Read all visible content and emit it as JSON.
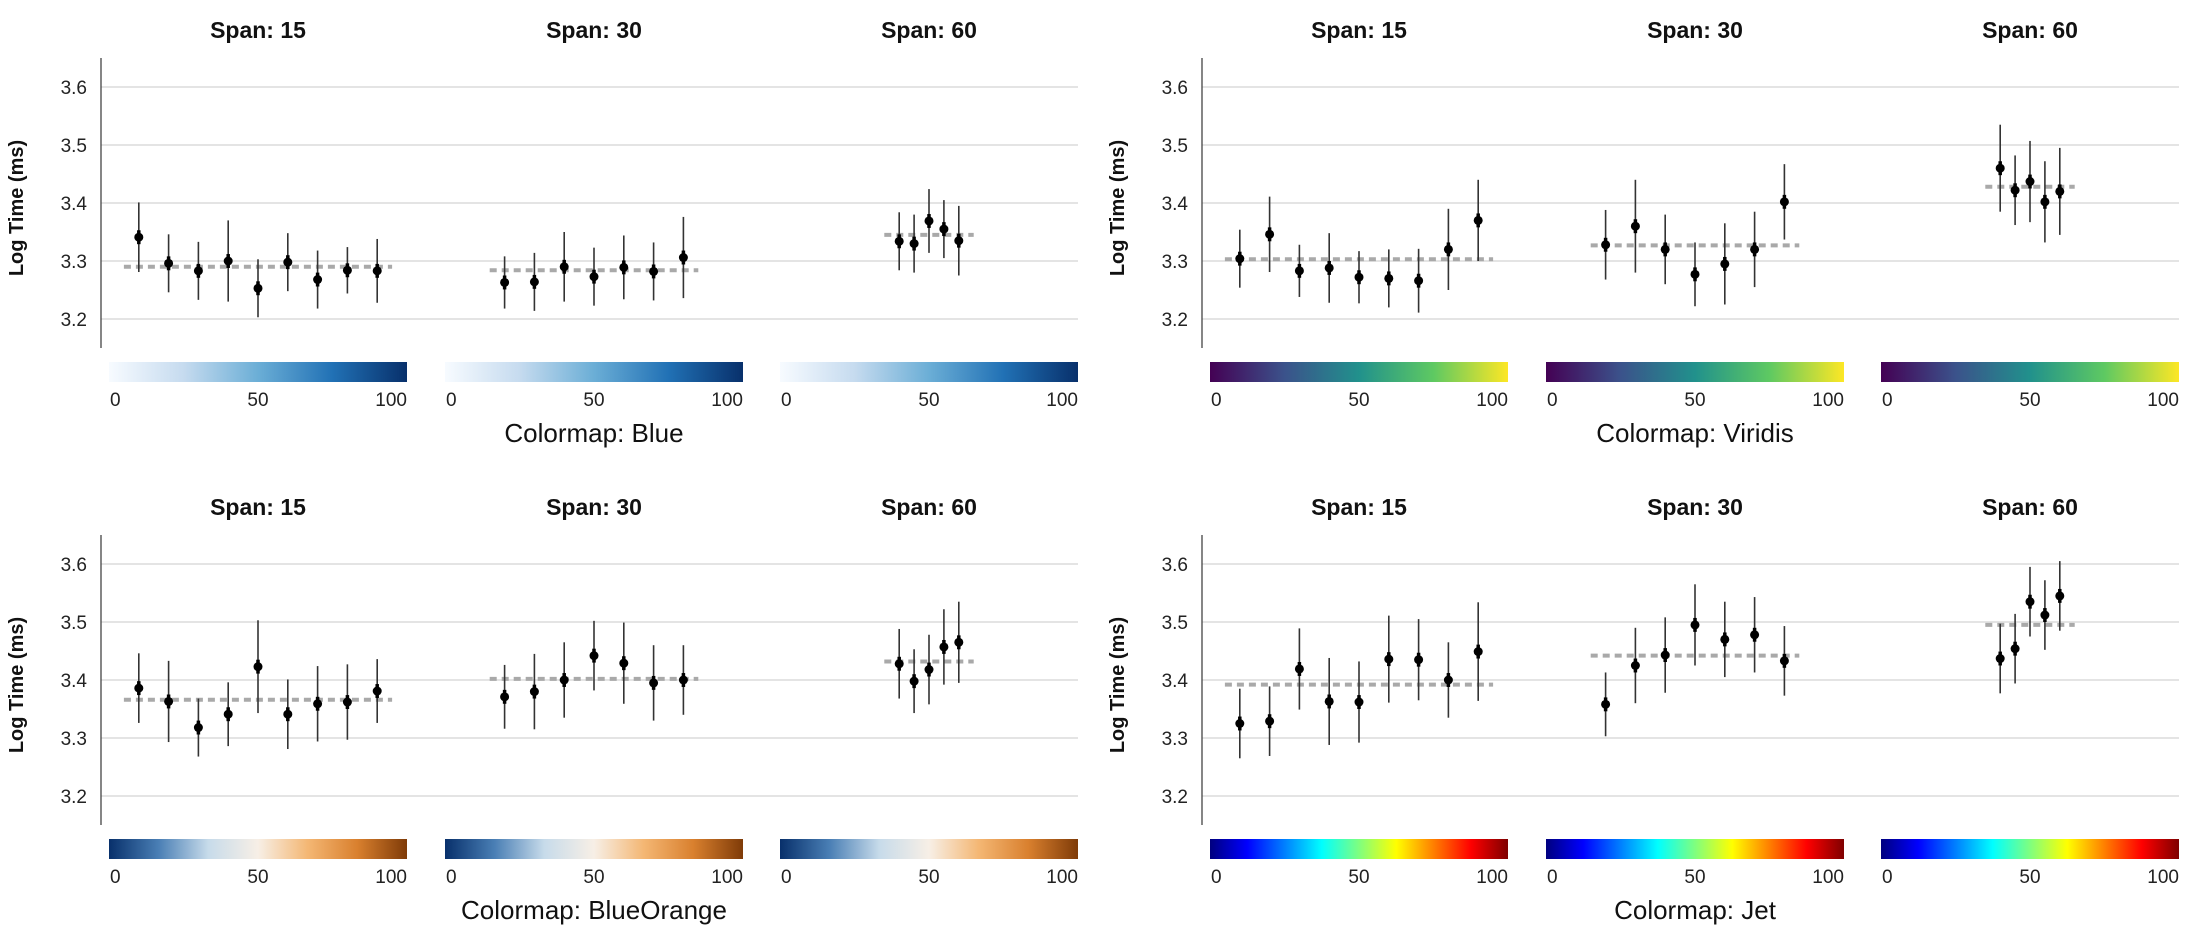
{
  "chart_data": {
    "type": "scatter",
    "y_label": "Log Time (ms)",
    "y_ticks": [
      3.2,
      3.3,
      3.4,
      3.5,
      3.6
    ],
    "colorbar_ticks": [
      0,
      50,
      100
    ],
    "colormaps": {
      "Blue": [
        "#f7fbff",
        "#c6dbef",
        "#6baed6",
        "#2171b5",
        "#08306b"
      ],
      "Viridis": [
        "#440154",
        "#3b528b",
        "#21918c",
        "#5ec962",
        "#fde725"
      ],
      "BlueOrange": [
        "#08306b",
        "#4a7fb5",
        "#c7dbea",
        "#f7efe6",
        "#f4b774",
        "#d9802e",
        "#7f3b08"
      ],
      "Jet": [
        "#00007f",
        "#0000ff",
        "#007fff",
        "#00ffff",
        "#7fff7f",
        "#ffff00",
        "#ff7f00",
        "#ff0000",
        "#7f0000"
      ]
    },
    "groups": [
      {
        "title": "Colormap: Blue",
        "colormap": "Blue",
        "ylim": [
          3.15,
          3.65
        ],
        "panels": [
          {
            "title": "Span: 15",
            "mean": 3.29,
            "points": [
              {
                "x": 10,
                "y": 3.341,
                "err": 0.06
              },
              {
                "x": 20,
                "y": 3.296,
                "err": 0.05
              },
              {
                "x": 30,
                "y": 3.283,
                "err": 0.05
              },
              {
                "x": 40,
                "y": 3.3,
                "err": 0.07
              },
              {
                "x": 50,
                "y": 3.253,
                "err": 0.05
              },
              {
                "x": 60,
                "y": 3.298,
                "err": 0.05
              },
              {
                "x": 70,
                "y": 3.268,
                "err": 0.05
              },
              {
                "x": 80,
                "y": 3.284,
                "err": 0.04
              },
              {
                "x": 90,
                "y": 3.283,
                "err": 0.055
              }
            ]
          },
          {
            "title": "Span: 30",
            "mean": 3.284,
            "points": [
              {
                "x": 20,
                "y": 3.263,
                "err": 0.045
              },
              {
                "x": 30,
                "y": 3.264,
                "err": 0.05
              },
              {
                "x": 40,
                "y": 3.29,
                "err": 0.06
              },
              {
                "x": 50,
                "y": 3.273,
                "err": 0.05
              },
              {
                "x": 60,
                "y": 3.289,
                "err": 0.055
              },
              {
                "x": 70,
                "y": 3.282,
                "err": 0.05
              },
              {
                "x": 80,
                "y": 3.306,
                "err": 0.07
              }
            ]
          },
          {
            "title": "Span: 60",
            "mean": 3.345,
            "points": [
              {
                "x": 40,
                "y": 3.334,
                "err": 0.05
              },
              {
                "x": 45,
                "y": 3.33,
                "err": 0.05
              },
              {
                "x": 50,
                "y": 3.369,
                "err": 0.055
              },
              {
                "x": 55,
                "y": 3.355,
                "err": 0.05
              },
              {
                "x": 60,
                "y": 3.335,
                "err": 0.06
              }
            ]
          }
        ]
      },
      {
        "title": "Colormap: Viridis",
        "colormap": "Viridis",
        "ylim": [
          3.15,
          3.65
        ],
        "panels": [
          {
            "title": "Span: 15",
            "mean": 3.303,
            "points": [
              {
                "x": 10,
                "y": 3.304,
                "err": 0.05
              },
              {
                "x": 20,
                "y": 3.346,
                "err": 0.065
              },
              {
                "x": 30,
                "y": 3.283,
                "err": 0.045
              },
              {
                "x": 40,
                "y": 3.288,
                "err": 0.06
              },
              {
                "x": 50,
                "y": 3.272,
                "err": 0.045
              },
              {
                "x": 60,
                "y": 3.27,
                "err": 0.05
              },
              {
                "x": 70,
                "y": 3.266,
                "err": 0.055
              },
              {
                "x": 80,
                "y": 3.32,
                "err": 0.07
              },
              {
                "x": 90,
                "y": 3.37,
                "err": 0.07
              }
            ]
          },
          {
            "title": "Span: 30",
            "mean": 3.327,
            "points": [
              {
                "x": 20,
                "y": 3.328,
                "err": 0.06
              },
              {
                "x": 30,
                "y": 3.36,
                "err": 0.08
              },
              {
                "x": 40,
                "y": 3.32,
                "err": 0.06
              },
              {
                "x": 50,
                "y": 3.277,
                "err": 0.055
              },
              {
                "x": 60,
                "y": 3.295,
                "err": 0.07
              },
              {
                "x": 70,
                "y": 3.32,
                "err": 0.065
              },
              {
                "x": 80,
                "y": 3.402,
                "err": 0.065
              }
            ]
          },
          {
            "title": "Span: 60",
            "mean": 3.428,
            "points": [
              {
                "x": 40,
                "y": 3.46,
                "err": 0.075
              },
              {
                "x": 45,
                "y": 3.422,
                "err": 0.06
              },
              {
                "x": 50,
                "y": 3.437,
                "err": 0.07
              },
              {
                "x": 55,
                "y": 3.402,
                "err": 0.07
              },
              {
                "x": 60,
                "y": 3.42,
                "err": 0.075
              }
            ]
          }
        ]
      },
      {
        "title": "Colormap: BlueOrange",
        "colormap": "BlueOrange",
        "ylim": [
          3.15,
          3.65
        ],
        "panels": [
          {
            "title": "Span: 15",
            "mean": 3.366,
            "points": [
              {
                "x": 10,
                "y": 3.386,
                "err": 0.06
              },
              {
                "x": 20,
                "y": 3.363,
                "err": 0.07
              },
              {
                "x": 30,
                "y": 3.318,
                "err": 0.05
              },
              {
                "x": 40,
                "y": 3.341,
                "err": 0.055
              },
              {
                "x": 50,
                "y": 3.423,
                "err": 0.08
              },
              {
                "x": 60,
                "y": 3.341,
                "err": 0.06
              },
              {
                "x": 70,
                "y": 3.359,
                "err": 0.065
              },
              {
                "x": 80,
                "y": 3.362,
                "err": 0.065
              },
              {
                "x": 90,
                "y": 3.381,
                "err": 0.055
              }
            ]
          },
          {
            "title": "Span: 30",
            "mean": 3.402,
            "points": [
              {
                "x": 20,
                "y": 3.371,
                "err": 0.055
              },
              {
                "x": 30,
                "y": 3.38,
                "err": 0.065
              },
              {
                "x": 40,
                "y": 3.4,
                "err": 0.065
              },
              {
                "x": 50,
                "y": 3.442,
                "err": 0.06
              },
              {
                "x": 60,
                "y": 3.429,
                "err": 0.07
              },
              {
                "x": 70,
                "y": 3.395,
                "err": 0.065
              },
              {
                "x": 80,
                "y": 3.4,
                "err": 0.06
              }
            ]
          },
          {
            "title": "Span: 60",
            "mean": 3.432,
            "points": [
              {
                "x": 40,
                "y": 3.428,
                "err": 0.06
              },
              {
                "x": 45,
                "y": 3.398,
                "err": 0.055
              },
              {
                "x": 50,
                "y": 3.418,
                "err": 0.06
              },
              {
                "x": 55,
                "y": 3.457,
                "err": 0.065
              },
              {
                "x": 60,
                "y": 3.465,
                "err": 0.07
              }
            ]
          }
        ]
      },
      {
        "title": "Colormap: Jet",
        "colormap": "Jet",
        "ylim": [
          3.15,
          3.65
        ],
        "panels": [
          {
            "title": "Span: 15",
            "mean": 3.392,
            "points": [
              {
                "x": 10,
                "y": 3.325,
                "err": 0.06
              },
              {
                "x": 20,
                "y": 3.329,
                "err": 0.06
              },
              {
                "x": 30,
                "y": 3.419,
                "err": 0.07
              },
              {
                "x": 40,
                "y": 3.363,
                "err": 0.075
              },
              {
                "x": 50,
                "y": 3.362,
                "err": 0.07
              },
              {
                "x": 60,
                "y": 3.436,
                "err": 0.075
              },
              {
                "x": 70,
                "y": 3.435,
                "err": 0.07
              },
              {
                "x": 80,
                "y": 3.4,
                "err": 0.065
              },
              {
                "x": 90,
                "y": 3.449,
                "err": 0.085
              }
            ]
          },
          {
            "title": "Span: 30",
            "mean": 3.442,
            "points": [
              {
                "x": 20,
                "y": 3.358,
                "err": 0.055
              },
              {
                "x": 30,
                "y": 3.425,
                "err": 0.065
              },
              {
                "x": 40,
                "y": 3.443,
                "err": 0.065
              },
              {
                "x": 50,
                "y": 3.495,
                "err": 0.07
              },
              {
                "x": 60,
                "y": 3.47,
                "err": 0.065
              },
              {
                "x": 70,
                "y": 3.478,
                "err": 0.065
              },
              {
                "x": 80,
                "y": 3.433,
                "err": 0.06
              }
            ]
          },
          {
            "title": "Span: 60",
            "mean": 3.495,
            "points": [
              {
                "x": 40,
                "y": 3.437,
                "err": 0.06
              },
              {
                "x": 45,
                "y": 3.454,
                "err": 0.06
              },
              {
                "x": 50,
                "y": 3.535,
                "err": 0.06
              },
              {
                "x": 55,
                "y": 3.512,
                "err": 0.06
              },
              {
                "x": 60,
                "y": 3.545,
                "err": 0.06
              }
            ]
          }
        ]
      }
    ]
  }
}
